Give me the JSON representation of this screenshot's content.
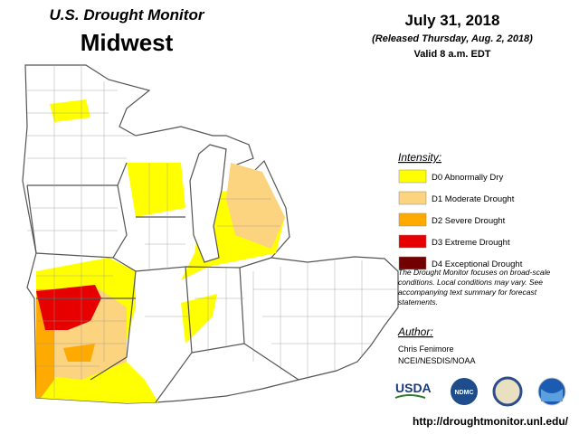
{
  "header": {
    "title": "U.S. Drought Monitor",
    "region": "Midwest",
    "date": "July 31, 2018",
    "released": "(Released Thursday, Aug. 2, 2018)",
    "valid": "Valid 8 a.m. EDT"
  },
  "legend": {
    "title": "Intensity:",
    "items": [
      {
        "label": "D0 Abnormally Dry",
        "color": "#ffff00"
      },
      {
        "label": "D1 Moderate Drought",
        "color": "#fcd37f"
      },
      {
        "label": "D2 Severe Drought",
        "color": "#ffaa00"
      },
      {
        "label": "D3 Extreme Drought",
        "color": "#e60000"
      },
      {
        "label": "D4 Exceptional Drought",
        "color": "#730000"
      }
    ]
  },
  "note": [
    "The Drought Monitor focuses on broad-scale",
    "conditions. Local conditions may vary. See",
    "accompanying text summary for forecast",
    "statements."
  ],
  "author": {
    "title": "Author:",
    "name": "Chris Fenimore",
    "org": "NCEI/NESDIS/NOAA"
  },
  "logos": [
    "USDA",
    "NDMC"
  ],
  "url": "http://droughtmonitor.unl.edu/"
}
